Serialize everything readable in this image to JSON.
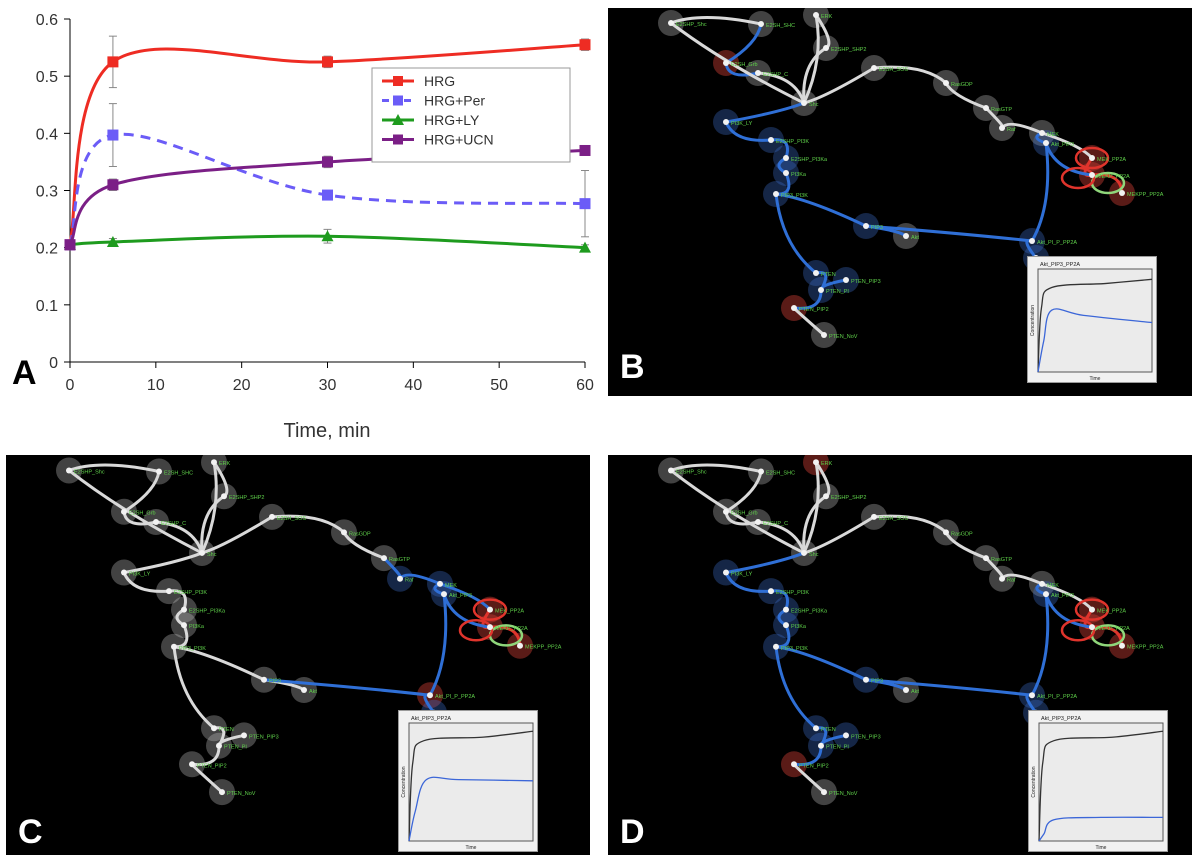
{
  "chart_data": {
    "type": "line",
    "panel_label": "A",
    "xlabel": "Time, min",
    "ylabel": "",
    "xlim": [
      0,
      60
    ],
    "ylim": [
      0,
      0.6
    ],
    "xticks": [
      0,
      10,
      20,
      30,
      40,
      50,
      60
    ],
    "yticks": [
      0,
      0.1,
      0.2,
      0.3,
      0.4,
      0.5,
      0.6
    ],
    "grid": false,
    "legend_position": "top-right",
    "series": [
      {
        "name": "HRG",
        "color": "#ee2c23",
        "marker": "square",
        "dash": "solid",
        "x": [
          0,
          5,
          30,
          60
        ],
        "y": [
          0.205,
          0.525,
          0.525,
          0.555
        ],
        "err": [
          0,
          0.045,
          0.01,
          0.01
        ]
      },
      {
        "name": "HRG+Per",
        "color": "#6b5cf7",
        "marker": "square",
        "dash": "dashed",
        "x": [
          0,
          5,
          30,
          60
        ],
        "y": [
          0.205,
          0.397,
          0.292,
          0.277
        ],
        "err": [
          0,
          0.055,
          0.005,
          0.058
        ]
      },
      {
        "name": "HRG+LY",
        "color": "#1e9b1e",
        "marker": "triangle",
        "dash": "solid",
        "x": [
          0,
          5,
          30,
          60
        ],
        "y": [
          0.205,
          0.21,
          0.22,
          0.2
        ],
        "err": [
          0,
          0.006,
          0.012,
          0.005
        ]
      },
      {
        "name": "HRG+UCN",
        "color": "#7b1f86",
        "marker": "square",
        "dash": "solid",
        "x": [
          0,
          5,
          30,
          60
        ],
        "y": [
          0.205,
          0.31,
          0.35,
          0.37
        ],
        "err": [
          0,
          0.01,
          0.01,
          0.008
        ]
      }
    ]
  },
  "panels": {
    "b": {
      "label": "B",
      "inset_title": "Akt_PIP3_PP2A",
      "inset_ylabel": "Concentration",
      "inset_xlabel": "Time"
    },
    "c": {
      "label": "C",
      "inset_title": "Akt_PIP3_PP2A",
      "inset_ylabel": "Concentration",
      "inset_xlabel": "Time"
    },
    "d": {
      "label": "D",
      "inset_title": "Akt_PIP3_PP2A",
      "inset_ylabel": "Concentration",
      "inset_xlabel": "Time"
    }
  },
  "network": {
    "node_labels": [
      "ERK",
      "E2SHP_Shc",
      "E2SHP_SHP2",
      "E2SH_SHC",
      "E2SH_Grb",
      "E2SHP_C",
      "PI3K_LY",
      "E2SHP_PI3K",
      "E2SHP_PI3Ka",
      "PI3Ka",
      "PIP3_PI3K",
      "PIP3",
      "Akt",
      "PTEN",
      "PTEN_PI",
      "PTEN_PIP3",
      "PTEN_PIP2",
      "PTEN_NoV",
      "Shc",
      "E2SH_SOS",
      "RasGDP",
      "RasGTP",
      "Raf",
      "MEK",
      "MEK_PP2A",
      "MEKP_PP2A",
      "MEKPP_PP2A",
      "Akt_PIP3",
      "Akt_PI_P_PP2A",
      "Akt_PIP3_PP2A"
    ]
  }
}
